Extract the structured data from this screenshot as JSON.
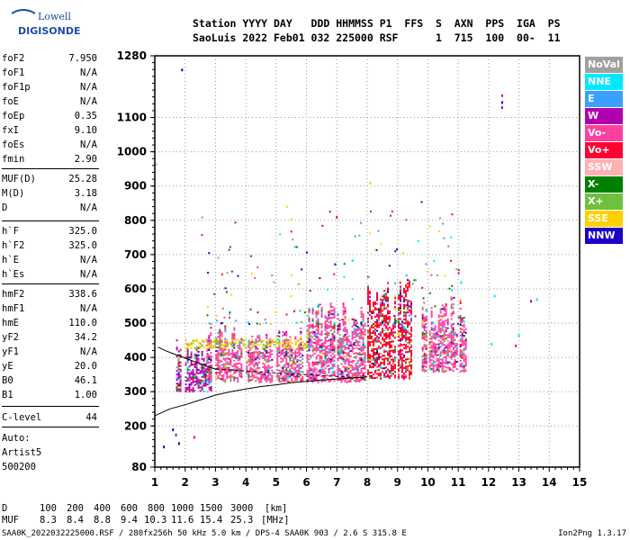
{
  "logo": {
    "line1": "Lowell",
    "line2": "DIGISONDE"
  },
  "header": {
    "line1": "Station YYYY DAY   DDD HHMMSS P1  FFS  S  AXN  PPS  IGA  PS",
    "line2": "SaoLuis 2022 Feb01 032 225000 RSF      1  715  100  00-  11"
  },
  "parameters": [
    {
      "name": "foF2",
      "value": "7.950"
    },
    {
      "name": "foF1",
      "value": "N/A"
    },
    {
      "name": "foF1p",
      "value": "N/A"
    },
    {
      "name": "foE",
      "value": "N/A"
    },
    {
      "name": "foEp",
      "value": "0.35"
    },
    {
      "name": "fxI",
      "value": "9.10"
    },
    {
      "name": "foEs",
      "value": "N/A"
    },
    {
      "name": "fmin",
      "value": "2.90"
    },
    {
      "name": "MUF(D)",
      "value": "25.28"
    },
    {
      "name": "M(D)",
      "value": "3.18"
    },
    {
      "name": "D",
      "value": "N/A"
    },
    {
      "name": "h`F",
      "value": "325.0"
    },
    {
      "name": "h`F2",
      "value": "325.0"
    },
    {
      "name": "h`E",
      "value": "N/A"
    },
    {
      "name": "h`Es",
      "value": "N/A"
    },
    {
      "name": "hmF2",
      "value": "338.6"
    },
    {
      "name": "hmF1",
      "value": "N/A"
    },
    {
      "name": "hmE",
      "value": "110.0"
    },
    {
      "name": "yF2",
      "value": "34.2"
    },
    {
      "name": "yF1",
      "value": "N/A"
    },
    {
      "name": "yE",
      "value": "20.0"
    },
    {
      "name": "B0",
      "value": "46.1"
    },
    {
      "name": "B1",
      "value": "1.00"
    },
    {
      "name": "C-level",
      "value": "44"
    }
  ],
  "autoscaling": {
    "label": "Auto:",
    "artist": "Artist5",
    "version": "500200"
  },
  "muf_table": {
    "d_label": "D",
    "d_values": [
      "100",
      "200",
      "400",
      "600",
      "800",
      "1000",
      "1500",
      "3000"
    ],
    "d_unit": "[km]",
    "muf_label": "MUF",
    "muf_values": [
      "8.3",
      "8.4",
      "8.8",
      "9.4",
      "10.3",
      "11.6",
      "15.4",
      "25.3"
    ],
    "muf_unit": "[MHz]"
  },
  "footer": {
    "left": "SAA0K_2022032225000.RSF / 280fx256h 50 kHz 5.0 km / DPS-4 SAA0K 903 / 2.6 S 315.8 E",
    "right": "Ion2Png 1.3.17"
  },
  "colors": {
    "NoVal": "#a0a0a0",
    "NNE": "#00e8ff",
    "E": "#3aa0ff",
    "W": "#b000b0",
    "Vo-": "#ff3fa0",
    "Vo+": "#ff0030",
    "SSW": "#ffb0b0",
    "X-": "#008000",
    "X+": "#70c040",
    "SSE": "#ffd000",
    "NNW": "#1a00c8"
  },
  "chart_data": {
    "type": "scatter",
    "title": "",
    "xlabel": "",
    "ylabel": "",
    "xlim": [
      1,
      15
    ],
    "ylim": [
      80,
      1280
    ],
    "xticks": [
      1,
      2,
      3,
      4,
      5,
      6,
      7,
      8,
      9,
      10,
      11,
      12,
      13,
      14,
      15
    ],
    "yticks": [
      80,
      200,
      300,
      400,
      500,
      600,
      700,
      800,
      900,
      1000,
      1100,
      1280
    ],
    "legend_placement": "right",
    "legend": [
      "NoVal",
      "NNE",
      "E",
      "W",
      "Vo-",
      "Vo+",
      "SSW",
      "X-",
      "X+",
      "SSE",
      "NNW"
    ],
    "trace": {
      "name": "",
      "x": [
        1.0,
        1.5,
        2.0,
        2.5,
        3.0,
        3.5,
        4.0,
        4.5,
        5.0,
        5.5,
        6.0,
        6.5,
        7.0,
        7.5,
        8.0
      ],
      "y": [
        230,
        250,
        262,
        276,
        290,
        300,
        308,
        315,
        320,
        326,
        330,
        334,
        337,
        340,
        343
      ]
    },
    "trace_upper": {
      "x": [
        1.1,
        1.4,
        1.7,
        2.0,
        2.3,
        2.6,
        3.0
      ],
      "y": [
        430,
        418,
        408,
        398,
        388,
        378,
        366
      ]
    },
    "dense_regions": [
      {
        "x": [
          1.7,
          3.0
        ],
        "y": [
          300,
          460
        ],
        "mode": "W"
      },
      {
        "x": [
          2.7,
          6.0
        ],
        "y": [
          330,
          500
        ],
        "mode": "Vo-"
      },
      {
        "x": [
          6.0,
          8.0
        ],
        "y": [
          330,
          560
        ],
        "mode": "Vo-"
      },
      {
        "x": [
          8.0,
          9.5
        ],
        "y": [
          340,
          640
        ],
        "mode": "Vo+"
      },
      {
        "x": [
          9.8,
          11.3
        ],
        "y": [
          360,
          580
        ],
        "mode": "Vo-"
      }
    ],
    "sparse_points": [
      {
        "x": 1.9,
        "y": 1240,
        "mode": "NNW"
      },
      {
        "x": 12.45,
        "y": 1165,
        "mode": "Vo+"
      },
      {
        "x": 12.45,
        "y": 1145,
        "mode": "NNW"
      },
      {
        "x": 12.45,
        "y": 1130,
        "mode": "W"
      },
      {
        "x": 1.6,
        "y": 190,
        "mode": "NNW"
      },
      {
        "x": 1.7,
        "y": 175,
        "mode": "W"
      },
      {
        "x": 1.8,
        "y": 150,
        "mode": "NNW"
      },
      {
        "x": 2.3,
        "y": 168,
        "mode": "Vo+"
      },
      {
        "x": 1.3,
        "y": 140,
        "mode": "NNW"
      },
      {
        "x": 1.05,
        "y": 965,
        "mode": "SSW"
      },
      {
        "x": 13.0,
        "y": 465,
        "mode": "NNE"
      },
      {
        "x": 12.1,
        "y": 440,
        "mode": "NNE"
      },
      {
        "x": 12.9,
        "y": 435,
        "mode": "Vo+"
      },
      {
        "x": 13.4,
        "y": 565,
        "mode": "W"
      },
      {
        "x": 13.6,
        "y": 570,
        "mode": "NNE"
      },
      {
        "x": 12.2,
        "y": 580,
        "mode": "NNE"
      },
      {
        "x": 11.1,
        "y": 620,
        "mode": "NNE"
      },
      {
        "x": 8.1,
        "y": 910,
        "mode": "SSE"
      },
      {
        "x": 7.0,
        "y": 810,
        "mode": "Vo+"
      }
    ]
  }
}
